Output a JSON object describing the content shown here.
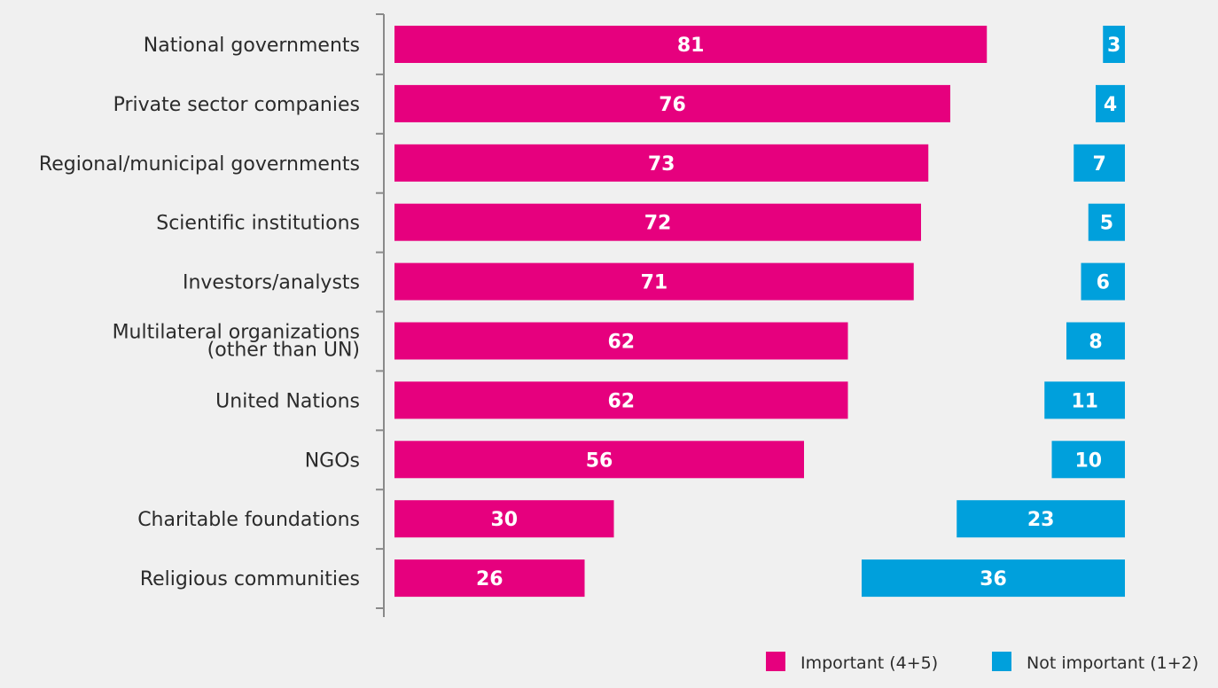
{
  "chart_data": {
    "type": "bar",
    "orientation": "horizontal",
    "categories": [
      "National governments",
      "Private sector companies",
      "Regional/municipal governments",
      "Scientific institutions",
      "Investors/analysts",
      "Multilateral organizations\n(other than UN)",
      "United Nations",
      "NGOs",
      "Charitable foundations",
      "Religious communities"
    ],
    "series": [
      {
        "name": "Important (4+5)",
        "color": "#e6007e",
        "values": [
          81,
          76,
          73,
          72,
          71,
          62,
          62,
          56,
          30,
          26
        ]
      },
      {
        "name": "Not important (1+2)",
        "color": "#00a0dc",
        "values": [
          3,
          4,
          7,
          5,
          6,
          8,
          11,
          10,
          23,
          36
        ]
      }
    ],
    "legend_position": "bottom-right",
    "grid": false
  }
}
